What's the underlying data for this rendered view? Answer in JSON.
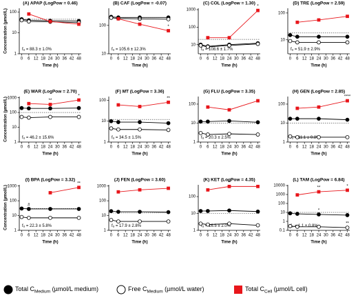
{
  "legend": [
    {
      "name": "Total C",
      "sub": "Medium",
      "unit": " (µmol/L medium)",
      "color": "#000000",
      "marker": "filled-circle"
    },
    {
      "name": "Free C",
      "sub": "Medium",
      "unit": " (µmol/L water)",
      "color": "#000000",
      "marker": "open-circle"
    },
    {
      "name": "Total C",
      "sub": "Cell",
      "unit": " (µmol/L cell)",
      "color": "#e8161b",
      "marker": "square"
    }
  ],
  "chart_data": [
    {
      "type": "line",
      "title": "(A) APAP (LogPow = 0.46)",
      "ylabel": "Concentration (µmol/L)",
      "xlabel": "Time (h)",
      "log_y": true,
      "xlim": [
        -2,
        50
      ],
      "xticks": [
        0,
        6,
        12,
        18,
        24,
        30,
        36,
        42,
        48
      ],
      "ylim": [
        1,
        150
      ],
      "yticks": [
        1,
        10,
        100
      ],
      "reference": 45,
      "note_symbol": "f",
      "note_sub": "u",
      "note": " = 88.3 ± 1.0%",
      "series": [
        {
          "x": [
            0,
            6,
            24,
            48
          ],
          "values": [
            45,
            40,
            38,
            37
          ]
        },
        {
          "x": [
            0,
            6,
            24,
            48
          ],
          "values": [
            40,
            35,
            34,
            31
          ]
        },
        {
          "x": [
            6,
            24,
            48
          ],
          "values": [
            80,
            35,
            26
          ]
        }
      ]
    },
    {
      "type": "line",
      "title": "(B) CAF (LogPow = -0.07)",
      "xlabel": "Time (h)",
      "log_y": true,
      "xlim": [
        -2,
        50
      ],
      "xticks": [
        0,
        6,
        12,
        18,
        24,
        30,
        36,
        42,
        48
      ],
      "ylim": [
        10,
        400
      ],
      "yticks": [
        10,
        100
      ],
      "reference": 190,
      "note_symbol": "f",
      "note_sub": "u",
      "note": " = 105.6 ± 12.3%",
      "series": [
        {
          "x": [
            0,
            6,
            24,
            48
          ],
          "values": [
            200,
            190,
            190,
            190
          ]
        },
        {
          "x": [
            0,
            6,
            24,
            48
          ],
          "values": [
            185,
            175,
            170,
            165
          ]
        },
        {
          "x": [
            6,
            24,
            48
          ],
          "values": [
            170,
            110,
            65
          ],
          "labels": [
            null,
            "**",
            "*"
          ]
        }
      ]
    },
    {
      "type": "line",
      "title": "(C) COL (LogPow = 1.30)",
      "xlabel": "Time (h)",
      "log_y": true,
      "xlim": [
        -2,
        50
      ],
      "xticks": [
        0,
        6,
        12,
        18,
        24,
        30,
        36,
        42,
        48
      ],
      "ylim": [
        3,
        1200
      ],
      "yticks": [
        10,
        100,
        1000
      ],
      "reference": 20,
      "note_symbol": "f",
      "note_sub": "u",
      "note": " = 108.6 ± 1.7%",
      "series": [
        {
          "x": [
            0,
            6,
            24,
            48
          ],
          "values": [
            10,
            8,
            10,
            12
          ]
        },
        {
          "x": [
            0,
            6,
            24,
            48
          ],
          "values": [
            9,
            7.5,
            9,
            11
          ]
        },
        {
          "x": [
            6,
            24,
            48
          ],
          "values": [
            25,
            25,
            900
          ],
          "labels": [
            null,
            null,
            "*"
          ]
        }
      ]
    },
    {
      "type": "line",
      "title": "(D) TRE (LogPow = 2.59)",
      "xlabel": "Time (h)",
      "log_y": true,
      "xlim": [
        -2,
        50
      ],
      "xticks": [
        0,
        6,
        12,
        18,
        24,
        30,
        36,
        42,
        48
      ],
      "ylim": [
        3,
        150
      ],
      "yticks": [
        10,
        100
      ],
      "reference": 18,
      "note_symbol": "f",
      "note_sub": "u",
      "note": " = 51.9 ± 2.9%",
      "series": [
        {
          "x": [
            0,
            6,
            24,
            48
          ],
          "values": [
            15,
            13,
            13,
            13
          ]
        },
        {
          "x": [
            0,
            6,
            24,
            48
          ],
          "values": [
            9,
            8,
            8,
            8
          ]
        },
        {
          "x": [
            6,
            24,
            48
          ],
          "values": [
            45,
            55,
            75
          ]
        }
      ]
    },
    {
      "type": "line",
      "title": "(E) WAR (LogPow = 2.70)",
      "ylabel": "Concentration (µmol/L)",
      "xlabel": "Time (h)",
      "log_y": true,
      "xlim": [
        -2,
        50
      ],
      "xticks": [
        0,
        6,
        12,
        18,
        24,
        30,
        36,
        42,
        48
      ],
      "ylim": [
        1,
        1200
      ],
      "yticks": [
        1,
        10,
        100,
        1000
      ],
      "reference": 100,
      "note_symbol": "f",
      "note_sub": "u",
      "note": " = 46.2 ± 15.6%",
      "series": [
        {
          "x": [
            0,
            6,
            24,
            48
          ],
          "values": [
            200,
            190,
            190,
            200
          ]
        },
        {
          "x": [
            0,
            6,
            24,
            48
          ],
          "values": [
            50,
            45,
            50,
            50
          ]
        },
        {
          "x": [
            6,
            24,
            48
          ],
          "values": [
            400,
            350,
            700
          ],
          "labels": [
            null,
            "**",
            "*"
          ]
        }
      ]
    },
    {
      "type": "line",
      "title": "(F) MT (LogPow = 3.36)",
      "xlabel": "Time (h)",
      "log_y": true,
      "xlim": [
        -2,
        50
      ],
      "xticks": [
        0,
        6,
        12,
        18,
        24,
        30,
        36,
        42,
        48
      ],
      "ylim": [
        1,
        150
      ],
      "yticks": [
        1,
        10,
        100
      ],
      "reference": 12,
      "note_symbol": "f",
      "note_sub": "u",
      "note": " = 34.5 ± 1.5%",
      "series": [
        {
          "x": [
            0,
            6,
            24,
            48
          ],
          "values": [
            10,
            9,
            9,
            8
          ]
        },
        {
          "x": [
            0,
            6,
            24,
            48
          ],
          "values": [
            4.5,
            4,
            4,
            3.8
          ]
        },
        {
          "x": [
            6,
            24,
            48
          ],
          "values": [
            60,
            50,
            80
          ],
          "labels": [
            null,
            null,
            "**"
          ]
        }
      ]
    },
    {
      "type": "line",
      "title": "(G) FLU (LogPow = 3.35)",
      "xlabel": "Time (h)",
      "log_y": true,
      "xlim": [
        -2,
        50
      ],
      "xticks": [
        0,
        6,
        12,
        18,
        24,
        30,
        36,
        42,
        48
      ],
      "ylim": [
        1,
        250
      ],
      "yticks": [
        1,
        10,
        100
      ],
      "reference": 10,
      "note_symbol": "f",
      "note_sub": "u",
      "note": " = 20.3 ± 2.5%",
      "series": [
        {
          "x": [
            0,
            6,
            24,
            48
          ],
          "values": [
            12,
            12,
            13,
            11
          ]
        },
        {
          "x": [
            0,
            6,
            24,
            48
          ],
          "values": [
            3,
            2.5,
            2.7,
            2.5
          ]
        },
        {
          "x": [
            6,
            24,
            48
          ],
          "values": [
            70,
            50,
            150
          ]
        }
      ]
    },
    {
      "type": "line",
      "title": "(H) GEN (LogPow = 2.85)",
      "xlabel": "Time (h)",
      "log_y": true,
      "xlim": [
        -2,
        50
      ],
      "xticks": [
        0,
        6,
        12,
        18,
        24,
        30,
        36,
        42,
        48
      ],
      "ylim": [
        1,
        250
      ],
      "yticks": [
        1,
        10,
        100
      ],
      "reference": 10,
      "note_symbol": "f",
      "note_sub": "u",
      "note": " = 11.1 ± 0.8%",
      "series": [
        {
          "x": [
            0,
            6,
            24,
            48
          ],
          "values": [
            17,
            17,
            17,
            15
          ]
        },
        {
          "x": [
            0,
            6,
            24,
            48
          ],
          "values": [
            2,
            1.8,
            1.8,
            1.8
          ]
        },
        {
          "x": [
            6,
            24,
            48
          ],
          "values": [
            60,
            70,
            150
          ],
          "labels": [
            null,
            null,
            "****"
          ]
        }
      ]
    },
    {
      "type": "line",
      "title": "(I) BPA (LogPow = 3.32)",
      "ylabel": "Concentration (µmol/L)",
      "xlabel": "Time (h)",
      "log_y": true,
      "xlim": [
        -2,
        50
      ],
      "xticks": [
        0,
        6,
        12,
        18,
        24,
        30,
        36,
        42,
        48
      ],
      "ylim": [
        1,
        1200
      ],
      "yticks": [
        1,
        10,
        100,
        1000
      ],
      "reference": 30,
      "note_symbol": "f",
      "note_sub": "u",
      "note": " = 22.3 ± 5.8%",
      "series": [
        {
          "x": [
            0,
            6,
            24,
            48
          ],
          "values": [
            30,
            28,
            28,
            28
          ],
          "labels": [
            null,
            "#",
            null,
            null
          ]
        },
        {
          "x": [
            0,
            6,
            24,
            48
          ],
          "values": [
            8,
            7,
            7,
            7
          ]
        },
        {
          "x": [
            24,
            48
          ],
          "values": [
            350,
            800
          ],
          "labels": [
            null,
            "**"
          ]
        }
      ]
    },
    {
      "type": "line",
      "title": "(J) FEN (LogPow = 3.60)",
      "xlabel": "Time (h)",
      "log_y": true,
      "xlim": [
        -2,
        50
      ],
      "xticks": [
        0,
        6,
        12,
        18,
        24,
        30,
        36,
        42,
        48
      ],
      "ylim": [
        1,
        1200
      ],
      "yticks": [
        1,
        10,
        100,
        1000
      ],
      "reference": 15,
      "note_symbol": "f",
      "note_sub": "u",
      "note": " = 17.9 ± 2.8%",
      "series": [
        {
          "x": [
            0,
            6,
            24,
            48
          ],
          "values": [
            20,
            18,
            18,
            17
          ]
        },
        {
          "x": [
            0,
            6,
            24,
            48
          ],
          "values": [
            5,
            4,
            4,
            4
          ]
        },
        {
          "x": [
            6,
            24,
            48
          ],
          "values": [
            400,
            550,
            700
          ]
        }
      ]
    },
    {
      "type": "line",
      "title": "(K) KET (LogPow = 4.35)",
      "xlabel": "Time (h)",
      "log_y": true,
      "xlim": [
        -2,
        50
      ],
      "xticks": [
        0,
        6,
        12,
        18,
        24,
        30,
        36,
        42,
        48
      ],
      "ylim": [
        1,
        500
      ],
      "yticks": [
        1,
        10,
        100
      ],
      "reference": 10,
      "note_symbol": "f",
      "note_sub": "u",
      "note": " = 16.5 ± 2.0%",
      "series": [
        {
          "x": [
            0,
            6,
            24,
            48
          ],
          "values": [
            14,
            14,
            15,
            13
          ]
        },
        {
          "x": [
            0,
            6,
            24,
            48
          ],
          "values": [
            2.5,
            2.2,
            2.5,
            2
          ]
        },
        {
          "x": [
            6,
            24,
            48
          ],
          "values": [
            250,
            400,
            400
          ],
          "labels": [
            null,
            "**",
            null
          ]
        }
      ]
    },
    {
      "type": "line",
      "title": "(L) TAM (LogPow = 6.84)",
      "xlabel": "Time (h)",
      "log_y": true,
      "xlim": [
        -2,
        50
      ],
      "xticks": [
        0,
        6,
        12,
        18,
        24,
        30,
        36,
        42,
        48
      ],
      "ylim": [
        0.1,
        12000
      ],
      "yticks": [
        0.1,
        1,
        10,
        100,
        1000,
        10000
      ],
      "reference": 10,
      "note_symbol": "f",
      "note_sub": "u",
      "note": " = 1.1 ± 0.8%",
      "series": [
        {
          "x": [
            0,
            6,
            24,
            48
          ],
          "values": [
            8,
            7,
            6,
            5
          ],
          "labels": [
            null,
            null,
            "*",
            null
          ]
        },
        {
          "x": [
            0,
            6,
            24,
            48
          ],
          "values": [
            0.3,
            0.25,
            0.25,
            0.2
          ],
          "labels": [
            null,
            null,
            null,
            "**"
          ]
        },
        {
          "x": [
            6,
            24,
            48
          ],
          "values": [
            900,
            2000,
            3000
          ],
          "labels": [
            null,
            "**",
            "*"
          ]
        }
      ]
    }
  ]
}
